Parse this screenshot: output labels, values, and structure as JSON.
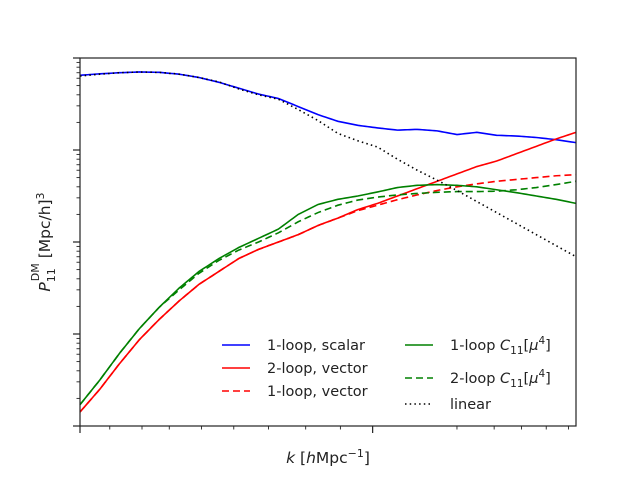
{
  "chart_data": {
    "type": "line",
    "title": "",
    "xlabel": "k [hMpc⁻¹]",
    "xlabel_parts": {
      "sym": "k",
      "open": " [",
      "h": "h",
      "unit": "Mpc",
      "sup": "−1",
      "close": "]"
    },
    "ylabel": "P₁₁^DM [Mpc/h]³",
    "ylabel_parts": {
      "sym": "P",
      "sub": "11",
      "sup": "DM",
      "unit": " [Mpc/h]",
      "pow": "3"
    },
    "x_scale": "log",
    "y_scale": "log",
    "x_ticklabels": [],
    "y_ticklabels": [],
    "grid": false,
    "legend_position": "lower-right",
    "x": [
      0.0,
      0.04,
      0.08,
      0.12,
      0.16,
      0.2,
      0.24,
      0.28,
      0.32,
      0.36,
      0.4,
      0.44,
      0.48,
      0.52,
      0.56,
      0.6,
      0.64,
      0.68,
      0.72,
      0.76,
      0.8,
      0.84,
      0.88,
      0.92,
      0.96,
      1.0
    ],
    "series": [
      {
        "name": "1-loop, scalar",
        "color": "#0000ff",
        "dash": "solid",
        "values": [
          0.953,
          0.957,
          0.96,
          0.962,
          0.961,
          0.956,
          0.947,
          0.934,
          0.918,
          0.902,
          0.89,
          0.868,
          0.846,
          0.828,
          0.817,
          0.81,
          0.804,
          0.806,
          0.802,
          0.792,
          0.798,
          0.79,
          0.788,
          0.784,
          0.778,
          0.77
        ]
      },
      {
        "name": "2-loop, vector",
        "color": "#ff0000",
        "dash": "solid",
        "values": [
          0.038,
          0.1,
          0.17,
          0.235,
          0.29,
          0.34,
          0.385,
          0.42,
          0.455,
          0.48,
          0.5,
          0.52,
          0.545,
          0.565,
          0.588,
          0.605,
          0.625,
          0.645,
          0.665,
          0.685,
          0.705,
          0.72,
          0.74,
          0.76,
          0.78,
          0.798
        ]
      },
      {
        "name": "1-loop, vector",
        "color": "#ff0000",
        "dash": "dashed",
        "values": [
          0.038,
          0.1,
          0.17,
          0.235,
          0.29,
          0.34,
          0.385,
          0.42,
          0.455,
          0.48,
          0.5,
          0.52,
          0.545,
          0.565,
          0.585,
          0.6,
          0.615,
          0.628,
          0.64,
          0.65,
          0.658,
          0.665,
          0.67,
          0.675,
          0.68,
          0.683
        ]
      },
      {
        "name": "1-loop C₁₁[μ⁴]",
        "label_parts": [
          "1-loop ",
          "C",
          "11",
          "[",
          "μ",
          "4",
          "]"
        ],
        "color": "#008000",
        "dash": "solid",
        "values": [
          0.058,
          0.125,
          0.198,
          0.265,
          0.323,
          0.375,
          0.42,
          0.455,
          0.485,
          0.51,
          0.535,
          0.575,
          0.602,
          0.616,
          0.625,
          0.636,
          0.648,
          0.654,
          0.656,
          0.654,
          0.65,
          0.642,
          0.634,
          0.625,
          0.616,
          0.605
        ]
      },
      {
        "name": "2-loop C₁₁[μ⁴]",
        "label_parts": [
          "2-loop ",
          "C",
          "11",
          "[",
          "μ",
          "4",
          "]"
        ],
        "color": "#008000",
        "dash": "dashed",
        "values": [
          0.058,
          0.125,
          0.198,
          0.265,
          0.323,
          0.37,
          0.415,
          0.45,
          0.478,
          0.5,
          0.525,
          0.555,
          0.58,
          0.6,
          0.614,
          0.622,
          0.628,
          0.632,
          0.635,
          0.637,
          0.637,
          0.638,
          0.642,
          0.648,
          0.656,
          0.665
        ]
      },
      {
        "name": "linear",
        "color": "#000000",
        "dash": "dotted",
        "values": [
          0.951,
          0.956,
          0.96,
          0.962,
          0.961,
          0.956,
          0.947,
          0.935,
          0.916,
          0.9,
          0.888,
          0.86,
          0.83,
          0.795,
          0.775,
          0.758,
          0.725,
          0.695,
          0.668,
          0.64,
          0.61,
          0.58,
          0.55,
          0.52,
          0.49,
          0.46
        ]
      }
    ]
  }
}
